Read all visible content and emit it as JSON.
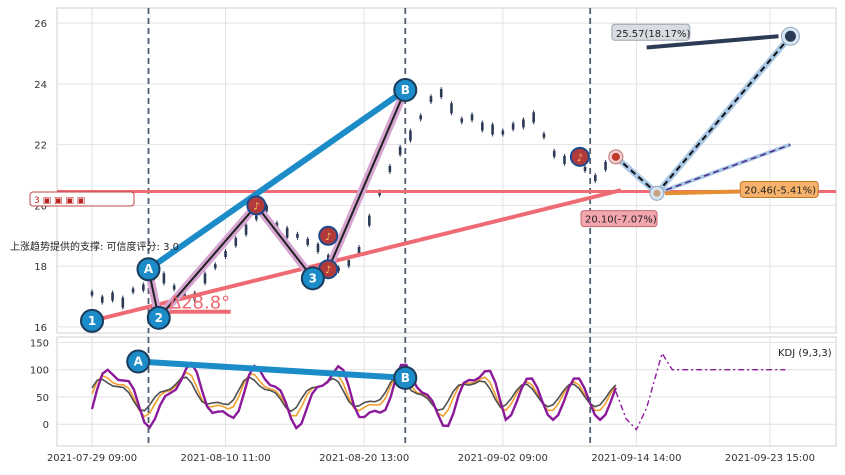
{
  "chart_data": [
    {
      "type": "candlestick",
      "panel": "price",
      "ylim": [
        15.8,
        26.5
      ],
      "yticks": [
        16,
        18,
        20,
        22,
        24,
        26
      ],
      "grid": true,
      "price_series": [
        {
          "x": 0,
          "v": 17.1
        },
        {
          "x": 2,
          "v": 16.9
        },
        {
          "x": 4,
          "v": 17.0
        },
        {
          "x": 6,
          "v": 16.8
        },
        {
          "x": 8,
          "v": 17.2
        },
        {
          "x": 10,
          "v": 17.3
        },
        {
          "x": 12,
          "v": 17.5
        },
        {
          "x": 14,
          "v": 17.6
        },
        {
          "x": 16,
          "v": 17.3
        },
        {
          "x": 18,
          "v": 17.1
        },
        {
          "x": 20,
          "v": 17.0
        },
        {
          "x": 22,
          "v": 17.6
        },
        {
          "x": 24,
          "v": 18.0
        },
        {
          "x": 26,
          "v": 18.4
        },
        {
          "x": 28,
          "v": 18.8
        },
        {
          "x": 30,
          "v": 19.2
        },
        {
          "x": 32,
          "v": 19.6
        },
        {
          "x": 34,
          "v": 19.9
        },
        {
          "x": 36,
          "v": 19.3
        },
        {
          "x": 38,
          "v": 19.1
        },
        {
          "x": 40,
          "v": 19.0
        },
        {
          "x": 42,
          "v": 18.8
        },
        {
          "x": 44,
          "v": 18.6
        },
        {
          "x": 46,
          "v": 18.2
        },
        {
          "x": 48,
          "v": 17.9
        },
        {
          "x": 50,
          "v": 18.1
        },
        {
          "x": 52,
          "v": 18.5
        },
        {
          "x": 54,
          "v": 19.5
        },
        {
          "x": 56,
          "v": 20.4
        },
        {
          "x": 58,
          "v": 21.2
        },
        {
          "x": 60,
          "v": 21.8
        },
        {
          "x": 62,
          "v": 22.3
        },
        {
          "x": 64,
          "v": 22.9
        },
        {
          "x": 66,
          "v": 23.5
        },
        {
          "x": 68,
          "v": 23.7
        },
        {
          "x": 70,
          "v": 23.2
        },
        {
          "x": 72,
          "v": 22.8
        },
        {
          "x": 74,
          "v": 22.9
        },
        {
          "x": 76,
          "v": 22.6
        },
        {
          "x": 78,
          "v": 22.5
        },
        {
          "x": 80,
          "v": 22.4
        },
        {
          "x": 82,
          "v": 22.6
        },
        {
          "x": 84,
          "v": 22.7
        },
        {
          "x": 86,
          "v": 22.9
        },
        {
          "x": 88,
          "v": 22.3
        },
        {
          "x": 90,
          "v": 21.7
        },
        {
          "x": 92,
          "v": 21.5
        },
        {
          "x": 94,
          "v": 21.6
        },
        {
          "x": 96,
          "v": 21.2
        },
        {
          "x": 98,
          "v": 20.9
        },
        {
          "x": 100,
          "v": 21.3
        },
        {
          "x": 102,
          "v": 21.6
        }
      ],
      "pattern_points": [
        {
          "label": "1",
          "x": 0,
          "y": 16.2,
          "color": "#1c8cc8"
        },
        {
          "label": "2",
          "x": 13,
          "y": 16.3,
          "color": "#1c8cc8"
        },
        {
          "label": "A",
          "x": 11,
          "y": 17.9,
          "color": "#1c8cc8"
        },
        {
          "label": "3",
          "x": 43,
          "y": 17.6,
          "color": "#1c8cc8"
        },
        {
          "label": "B",
          "x": 61,
          "y": 23.8,
          "color": "#1c8cc8"
        }
      ],
      "note_markers": [
        {
          "x": 32,
          "y": 20.0
        },
        {
          "x": 46,
          "y": 19.0
        },
        {
          "x": 46,
          "y": 17.9
        },
        {
          "x": 95,
          "y": 21.6
        }
      ],
      "annotations": {
        "support_text": "上涨趋势提供的支撑: 可信度评分: 3.0",
        "angle_text": "∆28.8°",
        "target_text": "25.57(18.17%)",
        "support_price_text": "20.46(-5.41%)",
        "trend_price_text": "20.10(-7.07%)",
        "stamp_text": "3 ▣ ▣ ▣ ▣"
      },
      "target": {
        "x": 136,
        "y": 25.57
      },
      "support_level": 20.46,
      "forecast_origin": {
        "x": 102,
        "y": 21.6
      },
      "forecast_pivot": {
        "x": 110,
        "y": 20.4
      }
    },
    {
      "type": "line",
      "panel": "kdj",
      "title": "KDJ (9,3,3)",
      "ylim": [
        -40,
        160
      ],
      "yticks": [
        0,
        50,
        100,
        150
      ],
      "x_tick_labels": [
        "2021-07-29 09:00",
        "2021-08-10 11:00",
        "2021-08-20 13:00",
        "2021-09-02 09:00",
        "2021-09-14 14:00",
        "2021-09-23 15:00"
      ],
      "series": [
        {
          "key": "K",
          "color": "#f0a030"
        },
        {
          "key": "D",
          "color": "#505050"
        },
        {
          "key": "J",
          "color": "#8b1a9b"
        }
      ],
      "labels": [
        {
          "label": "A",
          "x": 9,
          "y": 115
        },
        {
          "label": "B",
          "x": 61,
          "y": 85
        }
      ]
    }
  ]
}
